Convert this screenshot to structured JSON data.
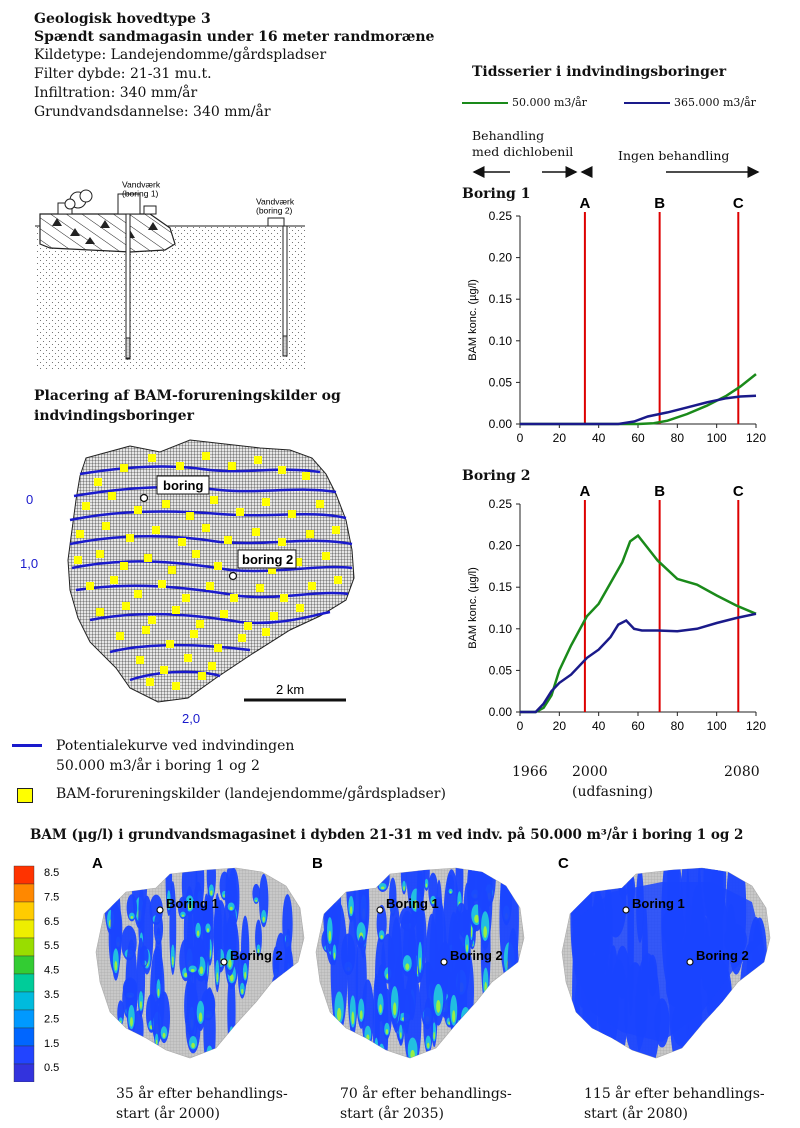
{
  "header": {
    "line1": "Geologisk hovedtype 3",
    "line2": "Spændt sandmagasin under 16 meter randmoræne",
    "line3": "Kildetype: Landejendomme/gårdspladser",
    "line4": "Filter dybde: 21-31 mu.t.",
    "line5": "Infiltration: 340 mm/år",
    "line6": "Grundvandsdannelse: 340 mm/år"
  },
  "cross_section": {
    "label1": "Vandværk",
    "label1b": "(boring 1)",
    "label2": "Vandværk",
    "label2b": "(boring 2)"
  },
  "map": {
    "title_line1": "Placering af BAM-forureningskilder og",
    "title_line2": "indvindingsboringer",
    "boring1": "boring",
    "boring2": "boring 2",
    "contour_labels": [
      "0",
      "1,0",
      "2,0"
    ],
    "scale": "2 km",
    "legend_line": "Potentialekurve ved indvindingen",
    "legend_line2": "50.000 m3/år i boring 1 og 2",
    "legend_box": "BAM-forureningskilder (landejendomme/gårdspladser)",
    "colors": {
      "contour": "#1a1acc",
      "source": "#ffff00"
    }
  },
  "timeseries": {
    "title": "Tidsserier i indvindingsboringer",
    "series_names": [
      "50.000 m3/år",
      "365.000 m3/år"
    ],
    "colors": {
      "s1": "#1a8a1a",
      "s2": "#1a1a8a",
      "marker": "#dd0000"
    },
    "phase1_line1": "Behandling",
    "phase1_line2": "med dichlobenil",
    "phase2": "Ingen behandling",
    "boring1_title": "Boring 1",
    "boring2_title": "Boring 2",
    "ylabel": "BAM konc. (µg/l)",
    "marker_labels": [
      "A",
      "B",
      "C"
    ],
    "year_labels": [
      "1966",
      "2000",
      "2080"
    ],
    "year_note": "(udfasning)"
  },
  "chart_data": [
    {
      "type": "line",
      "title": "Boring 1",
      "ylabel": "BAM konc. (µg/l)",
      "xlim": [
        0,
        120
      ],
      "ylim": [
        0,
        0.25
      ],
      "xticks": [
        0,
        20,
        40,
        60,
        80,
        100,
        120
      ],
      "yticks": [
        "0.00",
        "0.05",
        "0.10",
        "0.15",
        "0.20",
        "0.25"
      ],
      "markers": [
        {
          "label": "A",
          "x": 33
        },
        {
          "label": "B",
          "x": 71
        },
        {
          "label": "C",
          "x": 111
        }
      ],
      "series": [
        {
          "name": "50.000 m3/år",
          "x": [
            0,
            60,
            68,
            75,
            85,
            95,
            105,
            112,
            120
          ],
          "y": [
            0,
            0,
            0.001,
            0.004,
            0.012,
            0.022,
            0.034,
            0.045,
            0.06
          ]
        },
        {
          "name": "365.000 m3/år",
          "x": [
            0,
            50,
            58,
            65,
            75,
            85,
            95,
            105,
            112,
            120
          ],
          "y": [
            0,
            0,
            0.003,
            0.009,
            0.014,
            0.02,
            0.026,
            0.031,
            0.033,
            0.034
          ]
        }
      ]
    },
    {
      "type": "line",
      "title": "Boring 2",
      "ylabel": "BAM konc. (µg/l)",
      "xlim": [
        0,
        120
      ],
      "ylim": [
        0,
        0.25
      ],
      "xticks": [
        0,
        20,
        40,
        60,
        80,
        100,
        120
      ],
      "yticks": [
        "0.00",
        "0.05",
        "0.10",
        "0.15",
        "0.20",
        "0.25"
      ],
      "markers": [
        {
          "label": "A",
          "x": 33
        },
        {
          "label": "B",
          "x": 71
        },
        {
          "label": "C",
          "x": 111
        }
      ],
      "series": [
        {
          "name": "50.000 m3/år",
          "x": [
            0,
            8,
            12,
            16,
            20,
            26,
            34,
            40,
            46,
            52,
            56,
            60,
            64,
            70,
            80,
            90,
            100,
            110,
            120
          ],
          "y": [
            0,
            0,
            0.005,
            0.02,
            0.05,
            0.08,
            0.115,
            0.13,
            0.155,
            0.18,
            0.205,
            0.212,
            0.2,
            0.182,
            0.16,
            0.153,
            0.14,
            0.128,
            0.118
          ]
        },
        {
          "name": "365.000 m3/år",
          "x": [
            0,
            8,
            12,
            16,
            20,
            26,
            34,
            40,
            46,
            50,
            54,
            58,
            62,
            70,
            80,
            90,
            100,
            110,
            120
          ],
          "y": [
            0,
            0,
            0.01,
            0.025,
            0.035,
            0.045,
            0.065,
            0.075,
            0.09,
            0.105,
            0.11,
            0.1,
            0.098,
            0.098,
            0.097,
            0.1,
            0.107,
            0.113,
            0.118
          ]
        }
      ]
    },
    {
      "type": "heatmap",
      "title": "BAM (µg/l) i grundvandsmagasinet i dybden 21-31 m ved indv. på 50.000 m³/år i boring 1 og 2",
      "colorbar_ticks": [
        "8.5",
        "7.5",
        "6.5",
        "5.5",
        "4.5",
        "3.5",
        "2.5",
        "1.5",
        "0.5"
      ],
      "panels": [
        {
          "label": "A",
          "caption_line1": "35 år efter behandlings-",
          "caption_line2": "start (år 2000)"
        },
        {
          "label": "B",
          "caption_line1": "70 år efter behandlings-",
          "caption_line2": "start (år 2035)"
        },
        {
          "label": "C",
          "caption_line1": "115 år efter behandlings-",
          "caption_line2": "start (år 2080)"
        }
      ],
      "point_labels": [
        "Boring 1",
        "Boring 2"
      ]
    }
  ]
}
